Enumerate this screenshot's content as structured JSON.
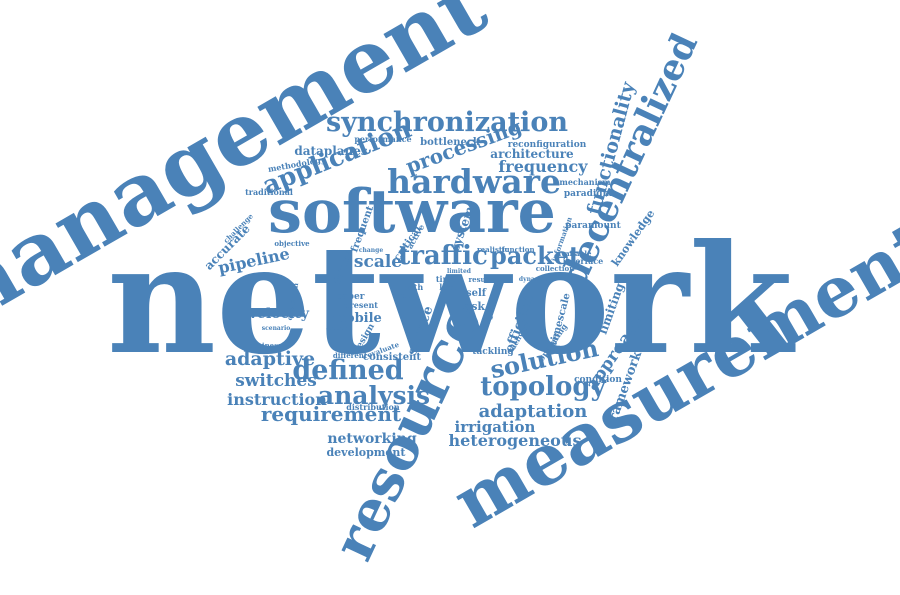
{
  "accent_color": "#4a82b8",
  "words": [
    {
      "text": "network"
    },
    {
      "text": "management"
    },
    {
      "text": "measurement"
    },
    {
      "text": "software"
    },
    {
      "text": "resource"
    },
    {
      "text": "decentralized"
    },
    {
      "text": "hardware"
    },
    {
      "text": "synchronization"
    },
    {
      "text": "application"
    },
    {
      "text": "processing"
    },
    {
      "text": "traffic"
    },
    {
      "text": "packet"
    },
    {
      "text": "defined"
    },
    {
      "text": "analysis"
    },
    {
      "text": "topology"
    },
    {
      "text": "solution"
    },
    {
      "text": "adaptive"
    },
    {
      "text": "requirement"
    },
    {
      "text": "adaptation"
    },
    {
      "text": "heterogeneous"
    },
    {
      "text": "functionality"
    },
    {
      "text": "approach"
    },
    {
      "text": "framework"
    },
    {
      "text": "frequency"
    },
    {
      "text": "switches"
    },
    {
      "text": "instruction"
    },
    {
      "text": "pipeline"
    },
    {
      "text": "velocity"
    },
    {
      "text": "mobile"
    },
    {
      "text": "scale"
    },
    {
      "text": "networking"
    },
    {
      "text": "development"
    },
    {
      "text": "irrigation"
    },
    {
      "text": "dataplanes"
    },
    {
      "text": "architecture"
    },
    {
      "text": "bottleneck"
    },
    {
      "text": "performance"
    },
    {
      "text": "reconfiguration"
    },
    {
      "text": "methodology"
    },
    {
      "text": "paradigm"
    },
    {
      "text": "mechanism"
    },
    {
      "text": "knowledge"
    },
    {
      "text": "limiting"
    },
    {
      "text": "accurate"
    },
    {
      "text": "system"
    },
    {
      "text": "efficient"
    },
    {
      "text": "service"
    },
    {
      "text": "paper"
    },
    {
      "text": "self"
    },
    {
      "text": "task"
    },
    {
      "text": "path"
    },
    {
      "text": "loss"
    },
    {
      "text": "time"
    },
    {
      "text": "consistent"
    },
    {
      "text": "tackling"
    },
    {
      "text": "condition"
    },
    {
      "text": "timescale"
    },
    {
      "text": "interface"
    },
    {
      "text": "available"
    },
    {
      "text": "paramount"
    },
    {
      "text": "traditional"
    },
    {
      "text": "challenge"
    },
    {
      "text": "objective"
    },
    {
      "text": "frequent"
    },
    {
      "text": "critical"
    },
    {
      "text": "future"
    },
    {
      "text": "design"
    },
    {
      "text": "evaluate"
    },
    {
      "text": "present"
    },
    {
      "text": "distribution"
    },
    {
      "text": "different"
    },
    {
      "text": "operation"
    },
    {
      "text": "business"
    },
    {
      "text": "scenario"
    },
    {
      "text": "amount"
    },
    {
      "text": "operating"
    },
    {
      "text": "delivery"
    },
    {
      "text": "dynamic"
    },
    {
      "text": "collection"
    },
    {
      "text": "function"
    },
    {
      "text": "realistic"
    },
    {
      "text": "result"
    },
    {
      "text": "information"
    },
    {
      "text": "passive"
    },
    {
      "text": "limited"
    },
    {
      "text": "app"
    },
    {
      "text": "change"
    },
    {
      "text": "active"
    }
  ]
}
